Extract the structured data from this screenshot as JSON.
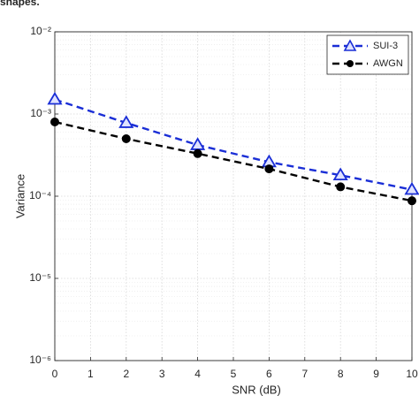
{
  "chart_data": {
    "type": "line",
    "caption": "shapes.",
    "xlabel": "SNR (dB)",
    "ylabel": "Variance",
    "x": [
      0,
      2,
      4,
      6,
      8,
      10
    ],
    "series": [
      {
        "name": "SUI-3",
        "color": "#1a2ed6",
        "marker": "triangle",
        "values": [
          0.0015,
          0.00078,
          0.00042,
          0.00026,
          0.00018,
          0.00012
        ]
      },
      {
        "name": "AWGN",
        "color": "#000000",
        "marker": "circle",
        "values": [
          0.0008,
          0.0005,
          0.00033,
          0.000215,
          0.00013,
          8.8e-05
        ]
      }
    ],
    "xlim": [
      0,
      10
    ],
    "xticks": [
      0,
      1,
      2,
      3,
      4,
      5,
      6,
      7,
      8,
      9,
      10
    ],
    "ylim": [
      1e-06,
      0.01
    ],
    "yticks": [
      {
        "value": 1e-06,
        "label": "10⁻⁶"
      },
      {
        "value": 1e-05,
        "label": "10⁻⁵"
      },
      {
        "value": 0.0001,
        "label": "10⁻⁴"
      },
      {
        "value": 0.001,
        "label": "10⁻³"
      },
      {
        "value": 0.01,
        "label": "10⁻²"
      }
    ],
    "log_y": true,
    "grid": true,
    "minor_grid": true,
    "legend": "upper right"
  }
}
